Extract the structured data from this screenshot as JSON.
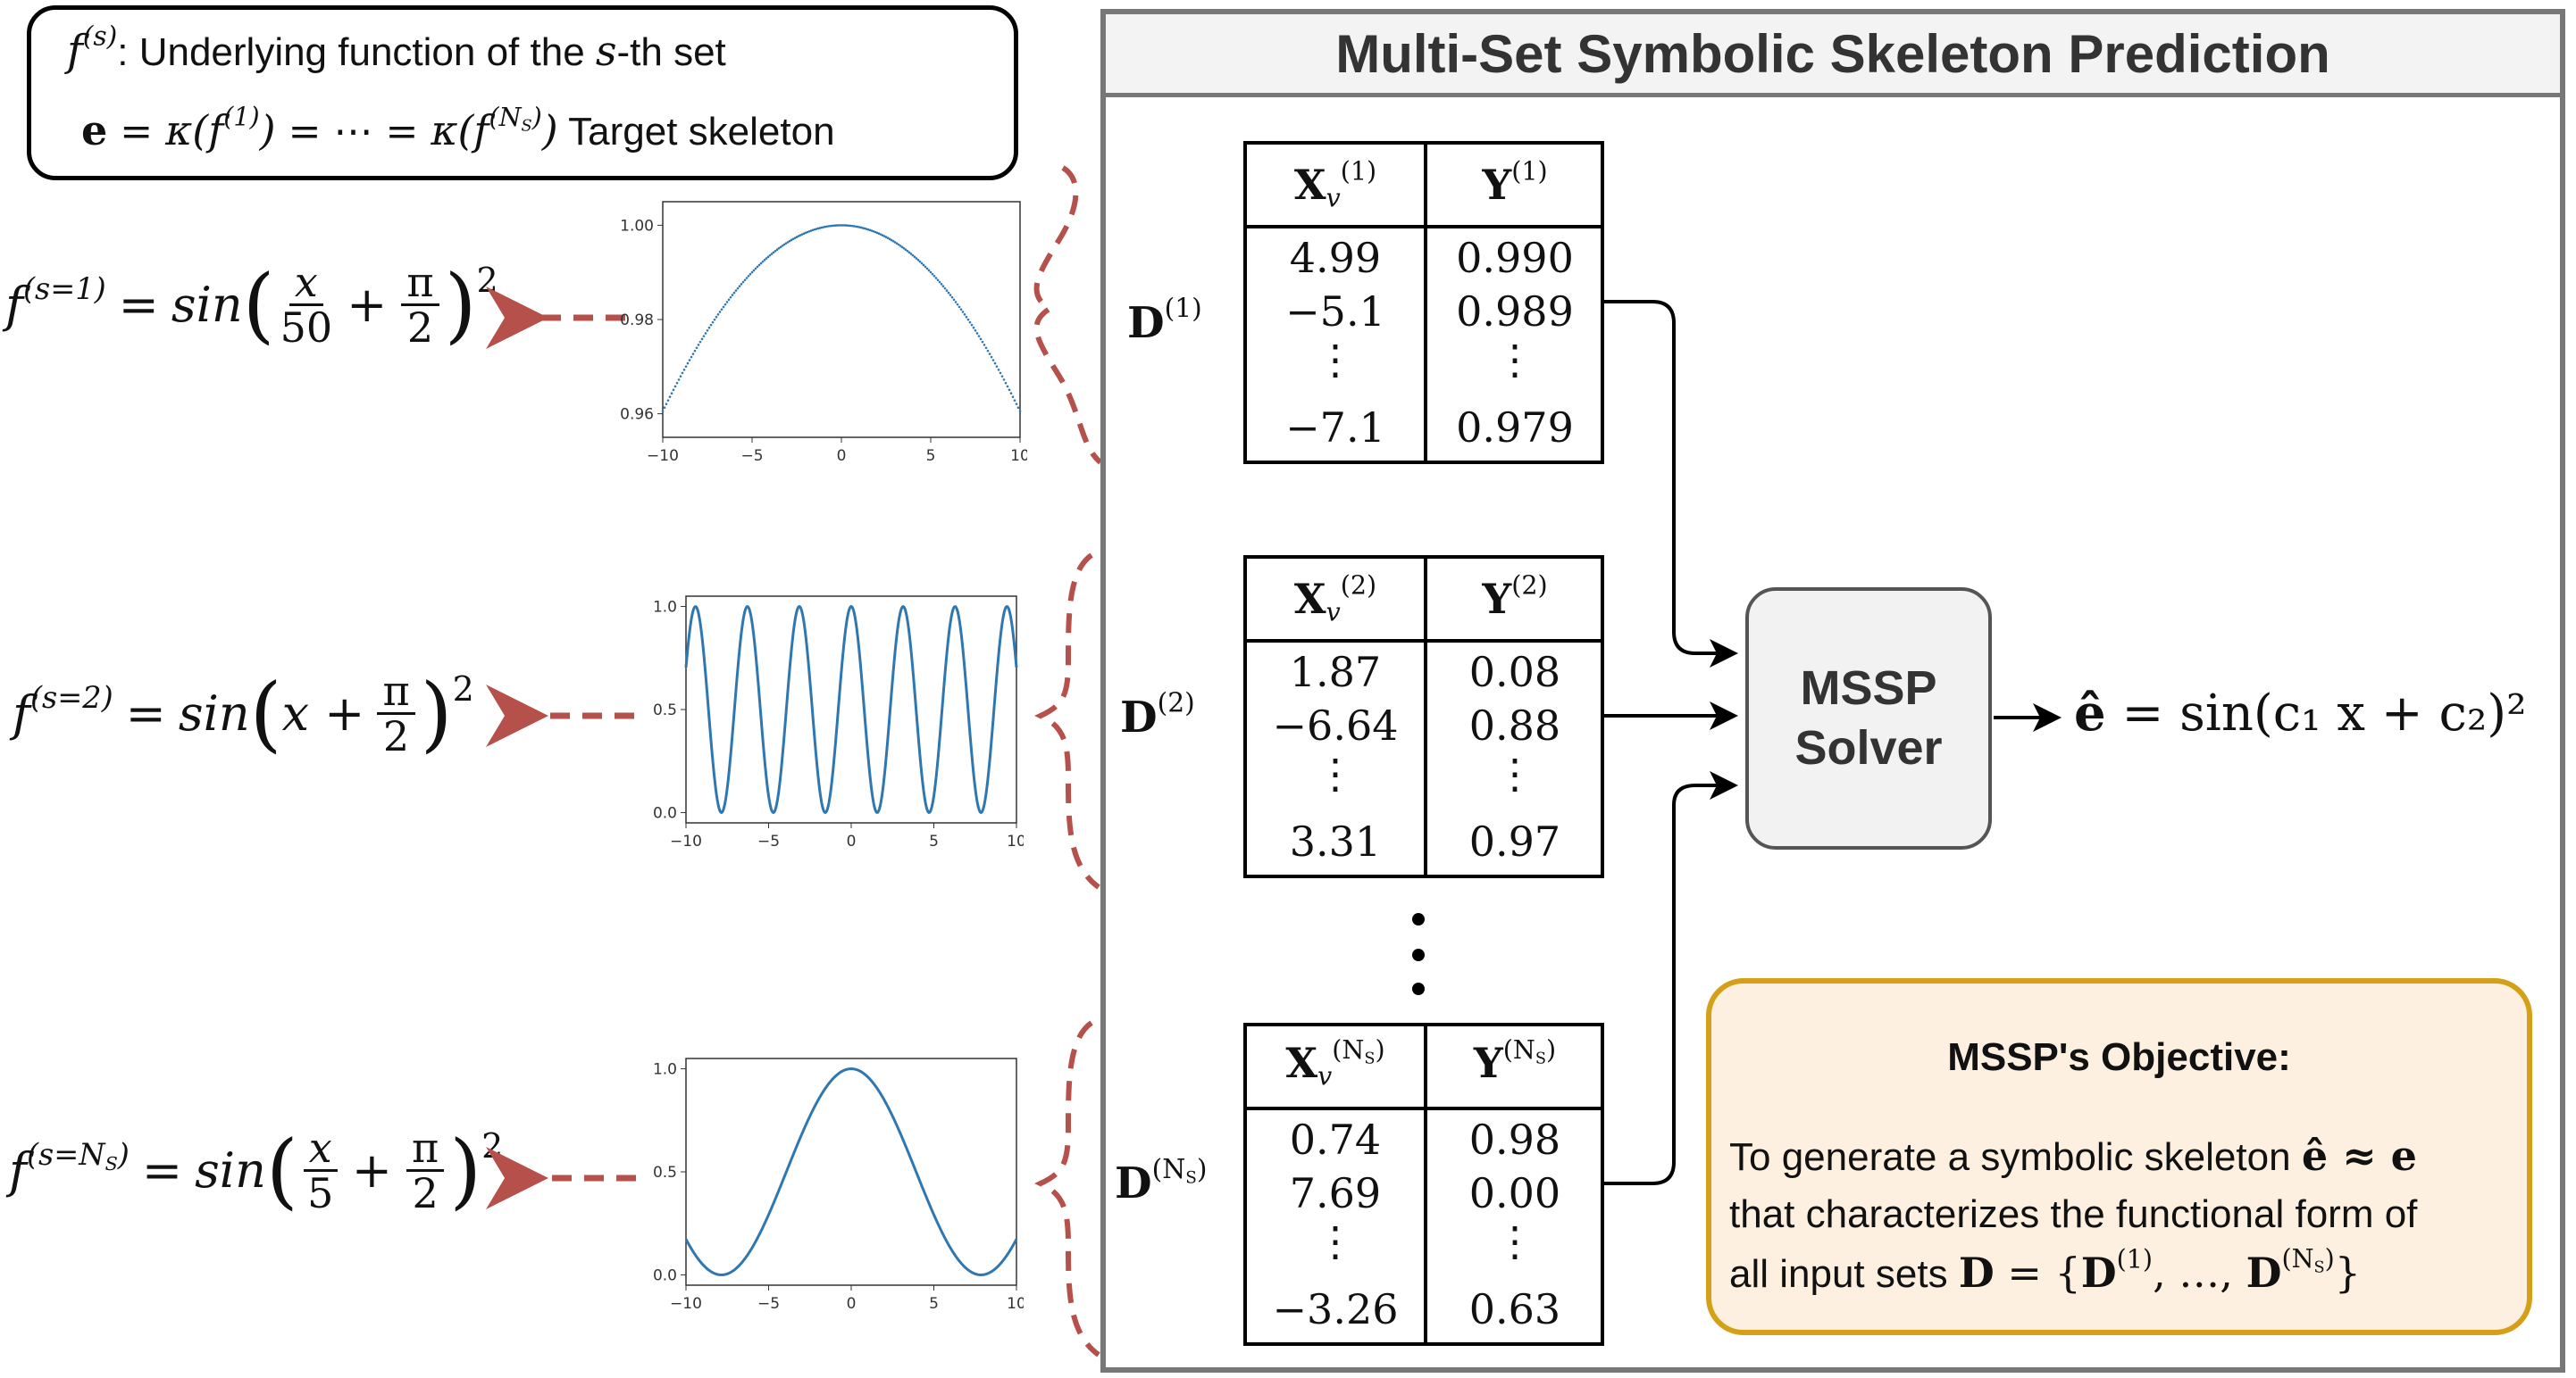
{
  "legend": {
    "line1_text": ": Underlying function of the ",
    "line1_var": "s",
    "line1_tail": "-th set",
    "line2_text": "Target skeleton"
  },
  "equations": [
    {
      "label": "s=1",
      "numerator": "x",
      "denominator": "50",
      "pi_num": "π",
      "pi_den": "2"
    },
    {
      "label": "s=2",
      "inner": "x +",
      "pi_num": "π",
      "pi_den": "2"
    },
    {
      "label": "s=N_S",
      "numerator": "x",
      "denominator": "5",
      "pi_num": "π",
      "pi_den": "2"
    }
  ],
  "plots": [
    {
      "name": "plot-set-1",
      "xticks": [
        "−10",
        "−5",
        "0",
        "5",
        "10"
      ],
      "yticks": [
        "1.00",
        "0.98",
        "0.96"
      ],
      "chart_data": {
        "type": "scatter",
        "function": "sin(x/50 + π/2)^2",
        "xlim": [
          -10,
          10
        ],
        "ylim": [
          0.955,
          1.005
        ]
      }
    },
    {
      "name": "plot-set-2",
      "xticks": [
        "−10",
        "−5",
        "0",
        "5",
        "10"
      ],
      "yticks": [
        "1.0",
        "0.5",
        "0.0"
      ],
      "chart_data": {
        "type": "line",
        "function": "sin(x + π/2)^2",
        "xlim": [
          -10,
          10
        ],
        "ylim": [
          -0.05,
          1.05
        ]
      }
    },
    {
      "name": "plot-set-NS",
      "xticks": [
        "−10",
        "−5",
        "0",
        "5",
        "10"
      ],
      "yticks": [
        "1.0",
        "0.5",
        "0.0"
      ],
      "chart_data": {
        "type": "line",
        "function": "sin(x/5 + π/2)^2",
        "xlim": [
          -10,
          10
        ],
        "ylim": [
          -0.05,
          1.05
        ]
      }
    }
  ],
  "panel": {
    "title": "Multi-Set Symbolic Skeleton Prediction"
  },
  "tables": [
    {
      "sup": "(1)",
      "rows": [
        [
          "4.99",
          "0.990"
        ],
        [
          "−5.1",
          "0.989"
        ],
        [
          "⋮",
          "⋮"
        ],
        [
          "−7.1",
          "0.979"
        ]
      ]
    },
    {
      "sup": "(2)",
      "rows": [
        [
          "1.87",
          "0.08"
        ],
        [
          "−6.64",
          "0.88"
        ],
        [
          "⋮",
          "⋮"
        ],
        [
          "3.31",
          "0.97"
        ]
      ]
    },
    {
      "sup": "(N_S)",
      "rows": [
        [
          "0.74",
          "0.98"
        ],
        [
          "7.69",
          "0.00"
        ],
        [
          "⋮",
          "⋮"
        ],
        [
          "−3.26",
          "0.63"
        ]
      ]
    }
  ],
  "solver": {
    "line1": "MSSP",
    "line2": "Solver"
  },
  "output": {
    "text": "= sin(c₁ x + c₂)²"
  },
  "objective": {
    "title": "MSSP's Objective:",
    "line1": "To generate a symbolic skeleton",
    "line2": "that characterizes the functional form of",
    "line3": "all input sets"
  },
  "colors": {
    "arrow_dashed": "#b5504b",
    "plot_line": "#2f77b1",
    "objective_border": "#d4a017",
    "objective_bg": "#fdf0e0",
    "panel_border": "#777777"
  }
}
